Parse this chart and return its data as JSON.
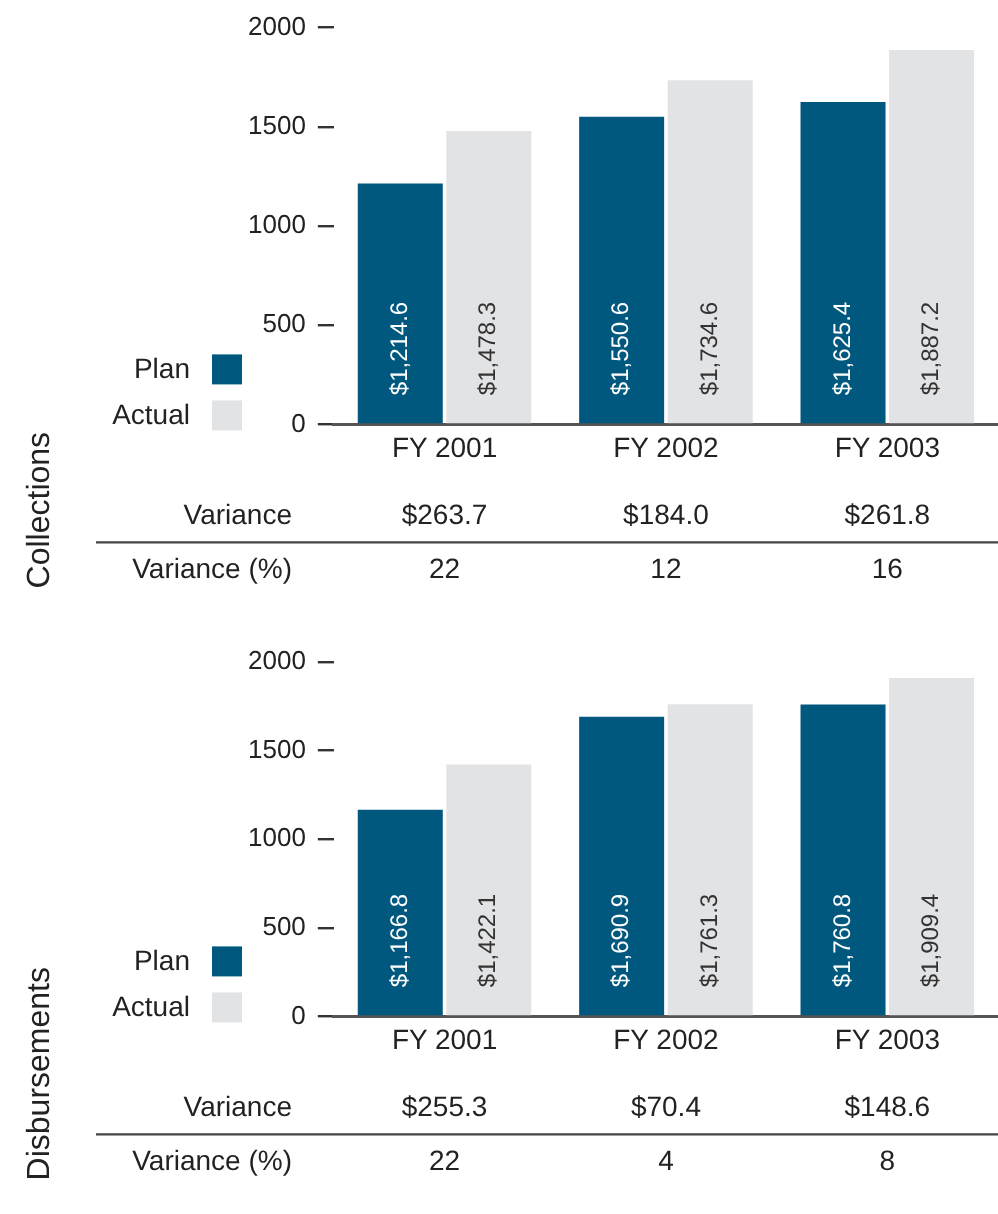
{
  "chart_data": [
    {
      "type": "bar",
      "ylabel": "Collections",
      "categories": [
        "FY 2001",
        "FY 2002",
        "FY 2003"
      ],
      "series": [
        {
          "name": "Plan",
          "color": "#00587f",
          "values": [
            1214.6,
            1550.6,
            1625.4
          ],
          "value_labels": [
            "$1,214.6",
            "$1,550.6",
            "$1,625.4"
          ]
        },
        {
          "name": "Actual",
          "color": "#e2e3e5",
          "values": [
            1478.3,
            1734.6,
            1887.2
          ],
          "value_labels": [
            "$1,478.3",
            "$1,734.6",
            "$1,887.2"
          ]
        }
      ],
      "ylim": [
        0,
        2000
      ],
      "yticks": [
        0,
        500,
        1000,
        1500,
        2000
      ],
      "legend": "left",
      "annotations": [
        "Variance",
        "$263.7",
        "$184.0",
        "$261.8",
        "Variance (%)",
        "22",
        "12",
        "16"
      ]
    },
    {
      "type": "bar",
      "ylabel": "Disbursements",
      "categories": [
        "FY 2001",
        "FY 2002",
        "FY 2003"
      ],
      "series": [
        {
          "name": "Plan",
          "color": "#00587f",
          "values": [
            1166.8,
            1690.9,
            1760.8
          ],
          "value_labels": [
            "$1,166.8",
            "$1,690.9",
            "$1,760.8"
          ]
        },
        {
          "name": "Actual",
          "color": "#e2e3e5",
          "values": [
            1422.1,
            1761.3,
            1909.4
          ],
          "value_labels": [
            "$1,422.1",
            "$1,761.3",
            "$1,909.4"
          ]
        }
      ],
      "ylim": [
        0,
        2000
      ],
      "yticks": [
        0,
        500,
        1000,
        1500,
        2000
      ],
      "legend": "left",
      "annotations": [
        "Variance",
        "$255.3",
        "$70.4",
        "$148.6",
        "Variance (%)",
        "22",
        "4",
        "8"
      ]
    }
  ]
}
